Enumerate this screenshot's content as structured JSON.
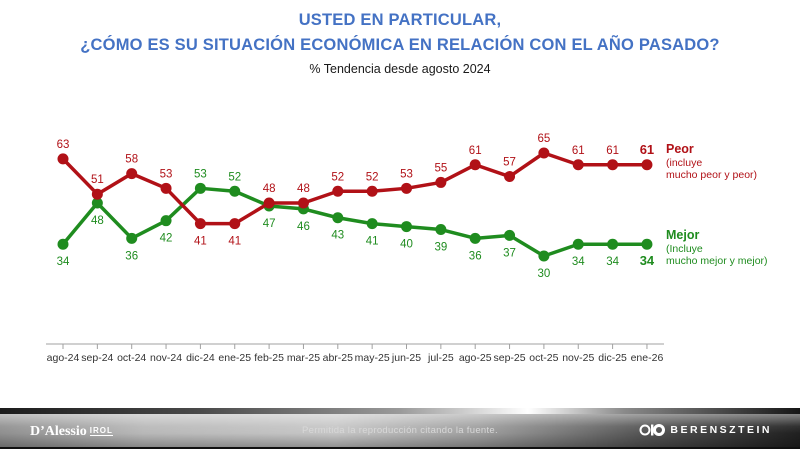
{
  "header": {
    "title_line1": "USTED EN PARTICULAR,",
    "title_line2": "¿CÓMO ES SU SITUACIÓN ECONÓMICA EN RELACIÓN CON EL AÑO PASADO?",
    "subtitle": "%  Tendencia desde agosto 2024",
    "title_color": "#4472C4"
  },
  "chart_data": {
    "type": "line",
    "categories": [
      "ago-24",
      "sep-24",
      "oct-24",
      "nov-24",
      "dic-24",
      "ene-25",
      "feb-25",
      "mar-25",
      "abr-25",
      "may-25",
      "jun-25",
      "jul-25",
      "ago-25",
      "sep-25",
      "oct-25",
      "nov-25",
      "dic-25",
      "ene-26"
    ],
    "series": [
      {
        "name": "Peor",
        "legend_lines": [
          "Peor",
          "(incluye",
          "mucho peor y peor)"
        ],
        "color": "#B11117",
        "values": [
          63,
          51,
          58,
          53,
          41,
          41,
          48,
          48,
          52,
          52,
          53,
          55,
          61,
          57,
          65,
          61,
          61,
          61
        ]
      },
      {
        "name": "Mejor",
        "legend_lines": [
          "Mejor",
          "(Incluye",
          "mucho mejor y mejor)"
        ],
        "color": "#1F8C1F",
        "values": [
          34,
          48,
          36,
          42,
          53,
          52,
          47,
          46,
          43,
          41,
          40,
          39,
          36,
          37,
          30,
          34,
          34,
          34
        ]
      }
    ],
    "title": "USTED EN PARTICULAR, ¿CÓMO ES SU SITUACIÓN ECONÓMICA EN RELACIÓN CON EL AÑO PASADO?",
    "xlabel": "",
    "ylabel": "%",
    "ylim": [
      25,
      70
    ],
    "grid": false,
    "legend_position": "right",
    "axis_color": "#a0a0a0",
    "tick_label_color": "#333333"
  },
  "footer": {
    "left_logo": "D’Alessio",
    "left_logo_suffix": "IROL",
    "center_text": "Permitida la reproducción citando la fuente.",
    "right_logo": "BERENSZTEIN"
  }
}
